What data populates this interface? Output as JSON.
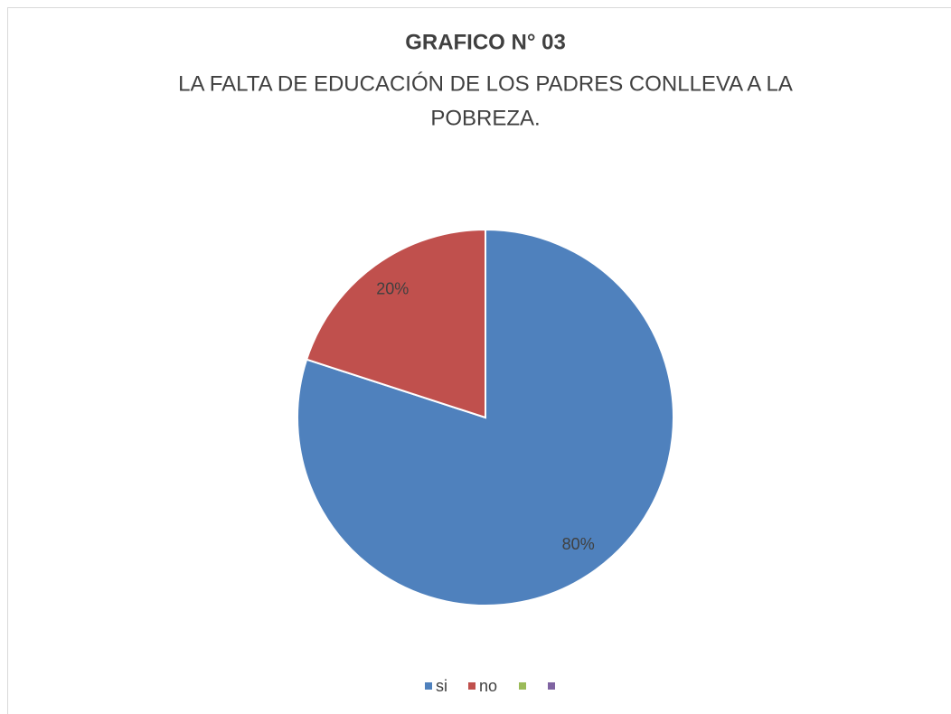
{
  "chart_data": {
    "type": "pie",
    "title": "GRAFICO N° 03",
    "subtitle": [
      "LA FALTA DE EDUCACIÓN DE LOS PADRES CONLLEVA A LA",
      "POBREZA."
    ],
    "categories": [
      "si",
      "no",
      null,
      null
    ],
    "values": [
      80,
      20,
      0,
      0
    ],
    "value_labels": [
      "80%",
      "20%",
      null,
      null
    ],
    "colors": [
      "#4f81bd",
      "#c0504d",
      "#9bbb59",
      "#8064a2"
    ],
    "legend": "bottom"
  }
}
